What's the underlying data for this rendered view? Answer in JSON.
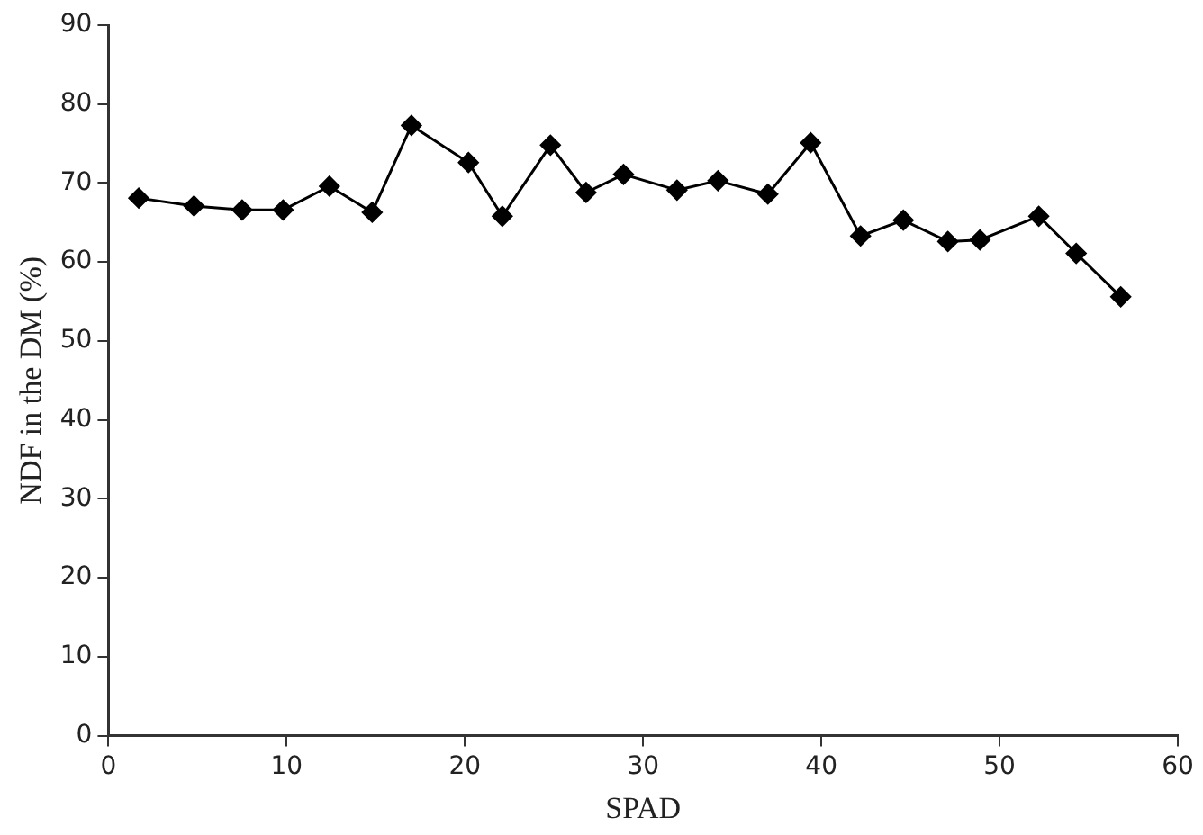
{
  "chart_data": {
    "type": "line",
    "xlabel": "SPAD",
    "ylabel": "NDF in the DM (%)",
    "x": [
      1.7,
      4.8,
      7.5,
      9.8,
      12.4,
      14.8,
      17.0,
      20.2,
      22.1,
      24.8,
      26.8,
      28.9,
      31.9,
      34.2,
      37.0,
      39.4,
      42.2,
      44.6,
      47.1,
      48.9,
      52.2,
      54.3,
      56.8
    ],
    "series": [
      {
        "color": "#000000",
        "values": [
          68.1,
          67.1,
          66.6,
          66.6,
          69.6,
          66.3,
          77.3,
          72.6,
          65.8,
          74.8,
          68.8,
          71.1,
          69.1,
          70.3,
          68.6,
          75.1,
          63.3,
          65.3,
          62.6,
          62.8,
          65.8,
          61.1,
          55.6
        ]
      }
    ],
    "xlim": [
      0,
      60
    ],
    "xticks": [
      0,
      10,
      20,
      30,
      40,
      50,
      60
    ],
    "ylim": [
      0,
      90
    ],
    "yticks": [
      0,
      10,
      20,
      30,
      40,
      50,
      60,
      70,
      80,
      90
    ],
    "grid": false,
    "legend": false,
    "marker": "diamond",
    "line_style": "solid"
  }
}
